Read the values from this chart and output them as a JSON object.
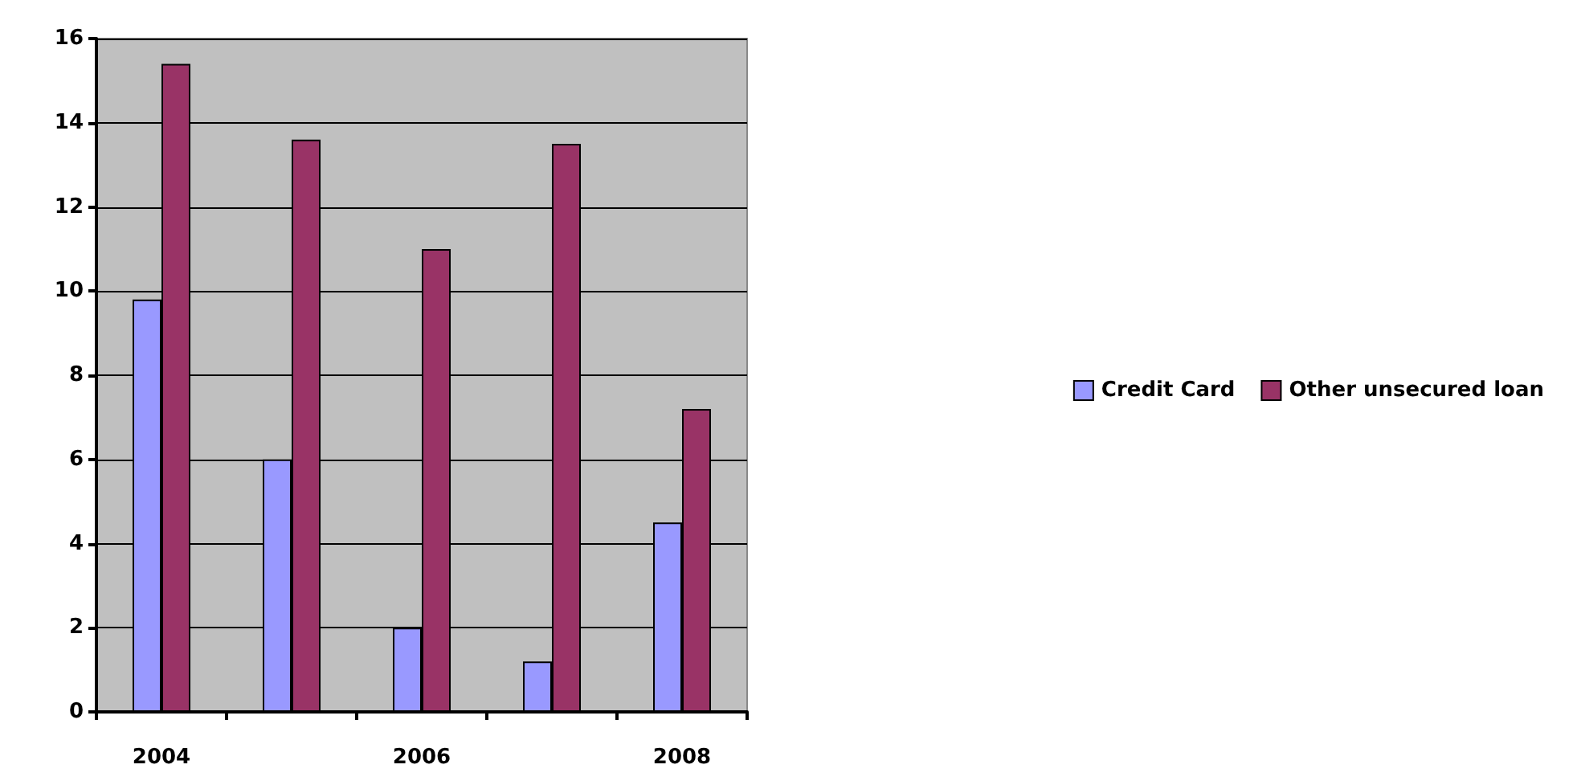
{
  "chart_data": {
    "type": "bar",
    "categories": [
      "2004",
      null,
      "2006",
      null,
      "2008"
    ],
    "series": [
      {
        "name": "Credit Card",
        "color": "#9999ff",
        "values": [
          9.8,
          6.0,
          2.0,
          1.2,
          4.5
        ]
      },
      {
        "name": "Other unsecured loan",
        "color": "#993366",
        "values": [
          15.4,
          13.6,
          11.0,
          13.5,
          7.2
        ]
      }
    ],
    "ylim": [
      0,
      16
    ],
    "yticks": [
      0,
      2,
      4,
      6,
      8,
      10,
      12,
      14,
      16
    ],
    "grid": "y",
    "legend": "right"
  }
}
